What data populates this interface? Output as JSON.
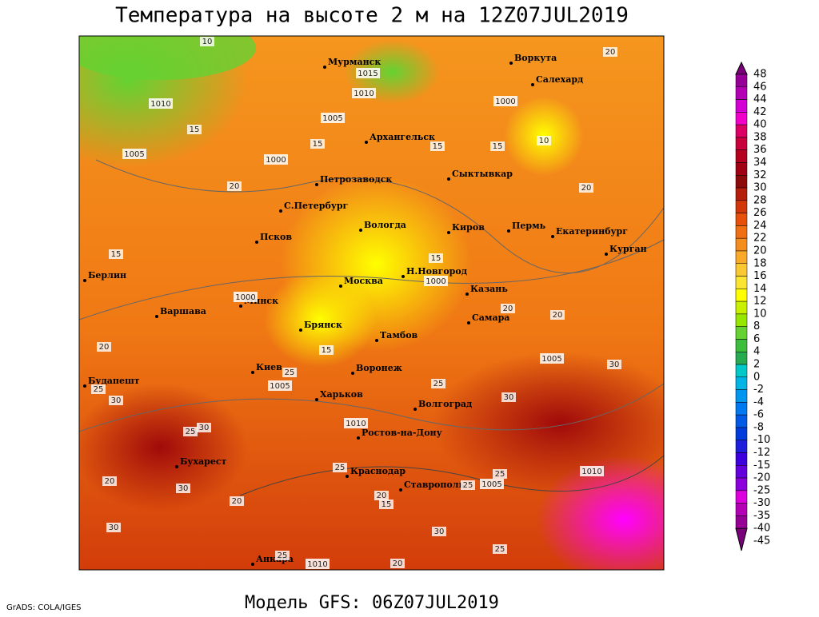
{
  "title": "Температура на высоте 2 м на 12Z07JUL2019",
  "footer": "Модель GFS: 06Z07JUL2019",
  "credit": "GrADS: COLA/IGES",
  "cities": [
    "Мурманск",
    "Воркута",
    "Салехард",
    "Архангельск",
    "Сыктывкар",
    "Петрозаводск",
    "С.Петербург",
    "Вологда",
    "Киров",
    "Пермь",
    "Екатеринбург",
    "Курган",
    "Псков",
    "Берлин",
    "Н.Новгород",
    "Москва",
    "Казань",
    "Минск",
    "Варшава",
    "Брянск",
    "Самара",
    "Тамбов",
    "Киев",
    "Воронеж",
    "Будапешт",
    "Харьков",
    "Волгоград",
    "Ростов-на-Дону",
    "Бухарест",
    "Краснодар",
    "Ставрополь",
    "Анкара"
  ],
  "isobars": [
    1015,
    1010,
    1010,
    1005,
    1005,
    1000,
    1000,
    1000,
    1000,
    1005,
    1005,
    1010,
    1010,
    1005,
    1010
  ],
  "isotherms": [
    10,
    10,
    15,
    15,
    15,
    20,
    20,
    15,
    20,
    15,
    15,
    20,
    20,
    15,
    20,
    25,
    30,
    25,
    30,
    25,
    30,
    30,
    25,
    25,
    20,
    20,
    30,
    25,
    25,
    20,
    30,
    15,
    25,
    25,
    30,
    20
  ],
  "colorbar": [
    {
      "value": 48,
      "color": "#7a007a"
    },
    {
      "value": 46,
      "color": "#960096"
    },
    {
      "value": 44,
      "color": "#b400b4"
    },
    {
      "value": 42,
      "color": "#d200d2"
    },
    {
      "value": 40,
      "color": "#f000c8"
    },
    {
      "value": 38,
      "color": "#dc0064"
    },
    {
      "value": 36,
      "color": "#c8003c"
    },
    {
      "value": 34,
      "color": "#b4001e"
    },
    {
      "value": 32,
      "color": "#a00014"
    },
    {
      "value": 30,
      "color": "#8c0a0a"
    },
    {
      "value": 28,
      "color": "#b41e0a"
    },
    {
      "value": 26,
      "color": "#d2370a"
    },
    {
      "value": 24,
      "color": "#e6500a"
    },
    {
      "value": 22,
      "color": "#f06e14"
    },
    {
      "value": 20,
      "color": "#f58c1e"
    },
    {
      "value": 18,
      "color": "#faaa28"
    },
    {
      "value": 16,
      "color": "#fac832"
    },
    {
      "value": 14,
      "color": "#fae632"
    },
    {
      "value": 12,
      "color": "#ffff00"
    },
    {
      "value": 10,
      "color": "#c8f000"
    },
    {
      "value": 8,
      "color": "#96e600"
    },
    {
      "value": 6,
      "color": "#64d232"
    },
    {
      "value": 4,
      "color": "#3cbe3c"
    },
    {
      "value": 2,
      "color": "#28aa50"
    },
    {
      "value": 0,
      "color": "#00c8c8"
    },
    {
      "value": -2,
      "color": "#00b4e6"
    },
    {
      "value": -4,
      "color": "#0096f0"
    },
    {
      "value": -6,
      "color": "#0078f0"
    },
    {
      "value": -8,
      "color": "#005ae6"
    },
    {
      "value": -10,
      "color": "#003cdc"
    },
    {
      "value": -12,
      "color": "#1e1edc"
    },
    {
      "value": -15,
      "color": "#3c00dc"
    },
    {
      "value": -20,
      "color": "#6400dc"
    },
    {
      "value": -25,
      "color": "#8c00dc"
    },
    {
      "value": -30,
      "color": "#dc00dc"
    },
    {
      "value": -35,
      "color": "#b400b4"
    },
    {
      "value": -40,
      "color": "#960096"
    },
    {
      "value": -45,
      "color": "#780078"
    }
  ]
}
